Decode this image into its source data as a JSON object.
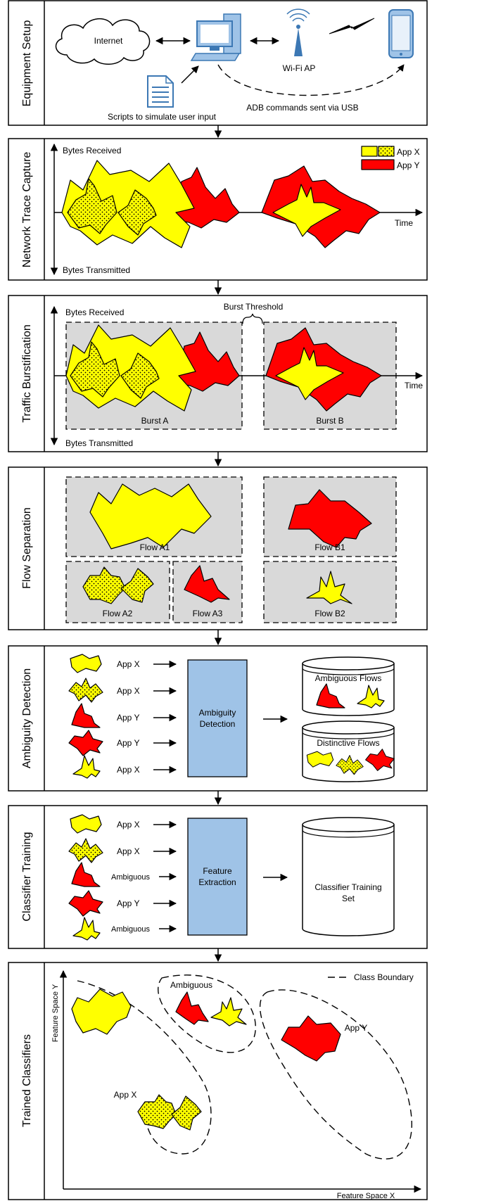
{
  "colors": {
    "app_x": "#ffff00",
    "app_y": "#ff0000",
    "box": "#9fc3e7",
    "burst": "#d9d9d9"
  },
  "stage_titles": [
    "Equipment Setup",
    "Network Trace Capture",
    "Traffic Burstification",
    "Flow Separation",
    "Ambiguity Detection",
    "Classifier Training",
    "Trained Classifiers"
  ],
  "setup": {
    "internet": "Internet",
    "wifi_ap": "Wi-Fi AP",
    "scripts": "Scripts to simulate user input",
    "adb": "ADB commands sent via USB",
    "icons": [
      "cloud-icon",
      "computer-icon",
      "document-icon",
      "wifi-antenna-icon",
      "lightning-icon",
      "smartphone-icon"
    ]
  },
  "capture": {
    "bytes_received": "Bytes Received",
    "bytes_transmitted": "Bytes Transmitted",
    "time": "Time",
    "legend": [
      "App X",
      "App Y"
    ]
  },
  "burst": {
    "bytes_received": "Bytes Received",
    "bytes_transmitted": "Bytes Transmitted",
    "time": "Time",
    "threshold": "Burst Threshold",
    "burst_a": "Burst A",
    "burst_b": "Burst B"
  },
  "flows": {
    "a1": "Flow A1",
    "b1": "Flow B1",
    "a2": "Flow A2",
    "a3": "Flow A3",
    "b2": "Flow B2"
  },
  "ambiguity": {
    "labels": [
      "App X",
      "App X",
      "App Y",
      "App Y",
      "App X"
    ],
    "box": [
      "Ambiguity",
      "Detection"
    ],
    "ambiguous_flows": "Ambiguous Flows",
    "distinctive_flows": "Distinctive Flows"
  },
  "training": {
    "labels": [
      "App X",
      "App X",
      "Ambiguous",
      "App Y",
      "Ambiguous"
    ],
    "box": [
      "Feature",
      "Extraction"
    ],
    "set": [
      "Classifier Training",
      "Set"
    ]
  },
  "trained": {
    "y_axis": "Feature Space Y",
    "x_axis": "Feature Space X",
    "class_boundary": "Class Boundary",
    "ambiguous": "Ambiguous",
    "app_x": "App X",
    "app_y": "App Y"
  }
}
